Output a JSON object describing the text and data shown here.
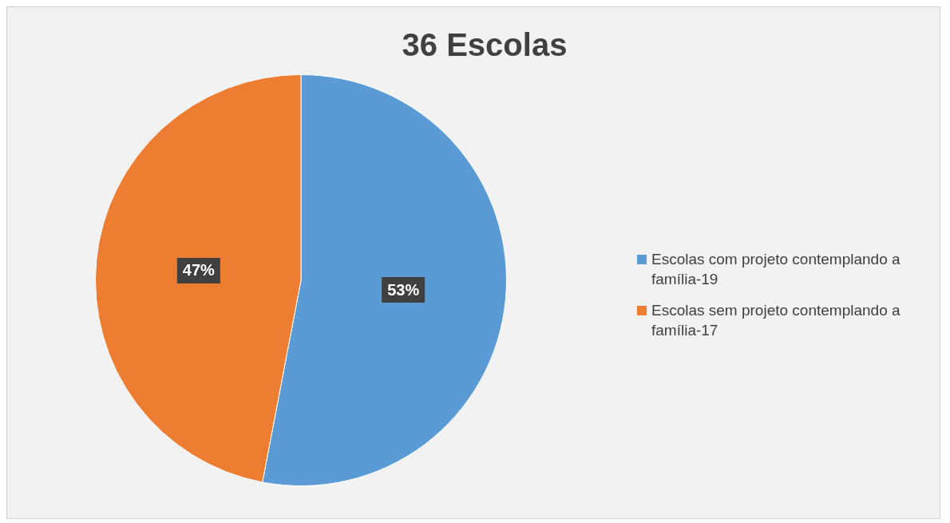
{
  "chart_data": {
    "type": "pie",
    "title": "36 Escolas",
    "categories": [
      "Escolas com projeto contemplando a família-19",
      "Escolas sem projeto contemplando a família-17"
    ],
    "values": [
      53,
      47
    ],
    "colors": [
      "#5b9bd5",
      "#ed7d31"
    ],
    "value_labels": [
      "53%",
      "47%"
    ],
    "legend": "right"
  }
}
